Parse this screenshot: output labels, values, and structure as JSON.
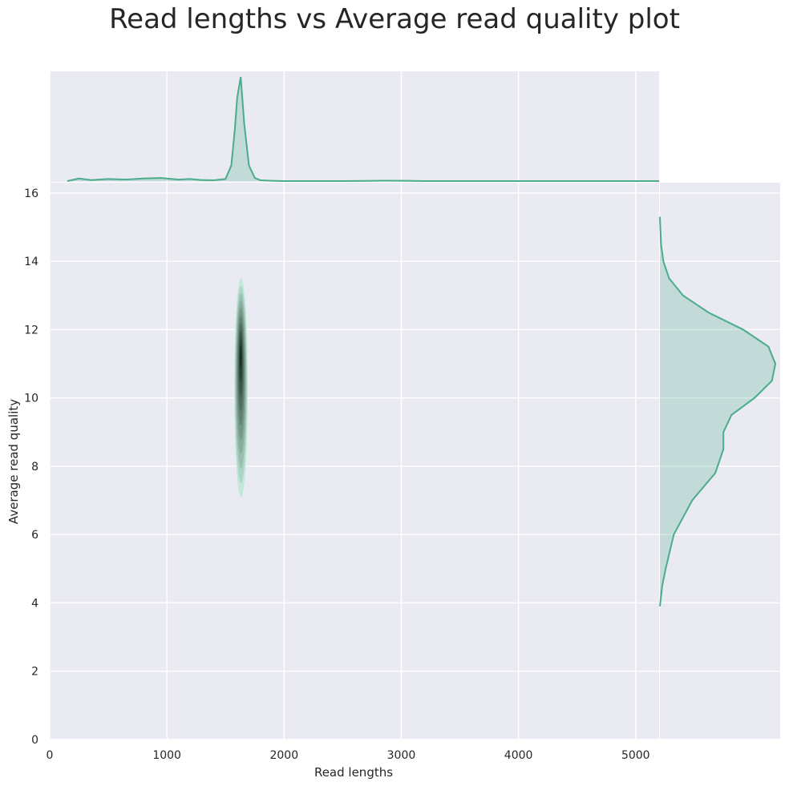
{
  "chart_data": {
    "type": "kde-jointplot",
    "title": "Read lengths vs Average read quality plot",
    "xlabel": "Read lengths",
    "ylabel": "Average read quality",
    "xlim": [
      0,
      5200
    ],
    "ylim": [
      0,
      16.3
    ],
    "xticks": [
      0,
      1000,
      2000,
      3000,
      4000,
      5000
    ],
    "yticks": [
      0,
      2,
      4,
      6,
      8,
      10,
      12,
      14,
      16
    ],
    "grid": true,
    "colors": {
      "background": "#eaeaf2",
      "grid": "#ffffff",
      "line": "#4aac8b",
      "fill": "#4aac8b",
      "text": "#262626"
    },
    "joint_kde": {
      "center": {
        "x": 1630,
        "y": 11.3
      },
      "extent": {
        "x": [
          1575,
          1690
        ],
        "y": [
          7.1,
          13.5
        ]
      }
    },
    "marginal_x": {
      "x": [
        150,
        250,
        350,
        500,
        650,
        800,
        950,
        1100,
        1200,
        1300,
        1400,
        1500,
        1550,
        1580,
        1600,
        1630,
        1660,
        1700,
        1750,
        1800,
        1900,
        2000,
        2500,
        2850,
        3100,
        3200,
        5200
      ],
      "density": [
        0.0,
        0.025,
        0.01,
        0.02,
        0.015,
        0.025,
        0.03,
        0.015,
        0.02,
        0.01,
        0.008,
        0.02,
        0.15,
        0.5,
        0.8,
        1.0,
        0.55,
        0.15,
        0.03,
        0.008,
        0.003,
        0.0,
        0.0,
        0.004,
        0.002,
        0.0,
        0.0
      ]
    },
    "marginal_y": {
      "y": [
        3.9,
        4.5,
        5.0,
        6.0,
        7.0,
        7.8,
        8.5,
        9.0,
        9.5,
        10.0,
        10.5,
        11.0,
        11.5,
        12.0,
        12.5,
        13.0,
        13.5,
        14.0,
        14.5,
        15.3
      ],
      "density": [
        0.0,
        0.02,
        0.05,
        0.12,
        0.28,
        0.48,
        0.55,
        0.55,
        0.62,
        0.82,
        0.97,
        1.0,
        0.94,
        0.72,
        0.42,
        0.2,
        0.08,
        0.03,
        0.01,
        0.0
      ]
    }
  }
}
